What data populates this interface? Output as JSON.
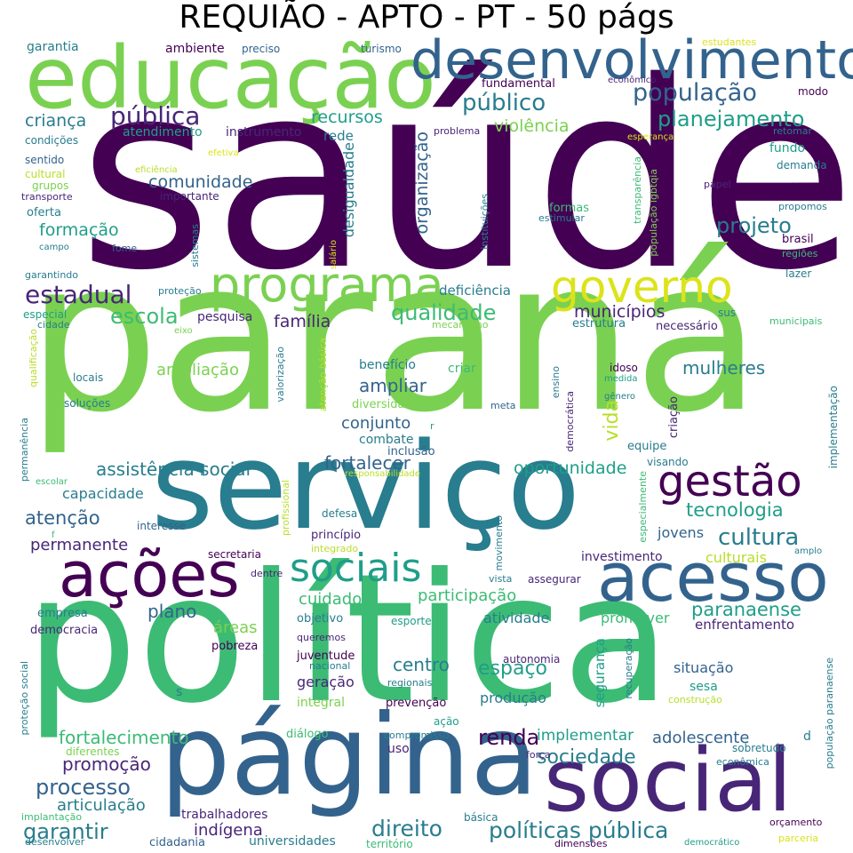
{
  "title": "REQUIÃO - APTO - PT - 50 págs",
  "colors": {
    "c1": "#440154",
    "c2": "#482677",
    "c3": "#33638d",
    "c4": "#287d8e",
    "c5": "#1f9e89",
    "c6": "#3cbb75",
    "c7": "#7ad151",
    "c8": "#b8de29",
    "c9": "#dce319"
  },
  "words": {
    "saude": "saúde",
    "parana": "paraná",
    "politica": "política",
    "servico": "serviço",
    "pagina": "página",
    "educacao": "educação",
    "desenvolvimento": "desenvolvimento",
    "social": "social",
    "acesso": "acesso",
    "acoes": "ações",
    "programa": "programa",
    "governo": "governo",
    "gestao": "gestão",
    "sociais": "sociais",
    "publica": "pública",
    "publico": "público",
    "populacao": "população",
    "planejamento": "planejamento",
    "crianca": "criança",
    "recursos": "recursos",
    "violencia": "violência",
    "comunidade": "comunidade",
    "projeto": "projeto",
    "estadual": "estadual",
    "qualidade": "qualidade",
    "escola": "escola",
    "formacao": "formação",
    "municipios": "municípios",
    "familia": "família",
    "cultura": "cultura",
    "paranaense": "paranaense",
    "tecnologia": "tecnologia",
    "fortalecer": "fortalecer",
    "assistencia_social": "assistência social",
    "oportunidade": "oportunidade",
    "atencao": "atenção",
    "permanente": "permanente",
    "renda": "renda",
    "processo": "processo",
    "garantir": "garantir",
    "direito": "direito",
    "politicas_publica": "políticas pública",
    "sociedade": "sociedade",
    "fortalecimento": "fortalecimento",
    "promocao": "promoção",
    "espaco": "espaço",
    "centro": "centro",
    "participacao": "participação",
    "cuidado": "cuidado",
    "plano": "plano",
    "ampliar": "ampliar",
    "ampliacao": "ampliação",
    "mulheres": "mulheres",
    "vida": "vida",
    "capacidade": "capacidade",
    "conjunto": "conjunto",
    "areas": "áreas",
    "articulacao": "articulação",
    "indigena": "indígena",
    "adolescente": "adolescente",
    "implementar": "implementar",
    "jovens": "jovens",
    "culturais": "culturais",
    "investimento": "investimento",
    "atividade": "atividade",
    "promover": "promover",
    "enfrentamento": "enfrentamento",
    "situacao": "situação",
    "geracao": "geração",
    "producao": "produção",
    "organizacao": "organização",
    "desigualdade": "desigualdade",
    "instrumento": "instrumento",
    "rede": "rede",
    "atendimento": "atendimento",
    "ambiente": "ambiente",
    "garantia": "garantia",
    "preciso": "preciso",
    "turismo": "turismo",
    "fundamental": "fundamental",
    "estudantes": "estudantes",
    "economico": "econômico",
    "modo": "modo",
    "retomar": "retomar",
    "esperanca": "esperança",
    "fundo": "fundo",
    "demanda": "demanda",
    "papel": "papel",
    "unidades": "unidades",
    "propomos": "propomos",
    "brasil": "brasil",
    "regioes": "regiões",
    "lazer": "lazer",
    "condicoes": "condições",
    "sentido": "sentido",
    "cultural": "cultural",
    "grupos": "grupos",
    "transporte": "transporte",
    "oferta": "oferta",
    "campo": "campo",
    "fome": "fome",
    "garantindo": "garantindo",
    "eficiencia": "eficiência",
    "efetiva": "efetiva",
    "importante": "importante",
    "problema": "problema",
    "formas": "formas",
    "estimular": "estimular",
    "populacao_lgbtqia": "população lgbtqia",
    "transparencia": "transparência",
    "instituicoes": "instituições",
    "sistemas": "sistemas",
    "salario": "salário",
    "protecao": "proteção",
    "deficiencia": "deficiência",
    "especial": "especial",
    "cidade": "cidade",
    "eixo": "eixo",
    "pesquisa": "pesquisa",
    "mecanismo": "mecanismo",
    "estrutura": "estrutura",
    "sus": "sus",
    "necessario": "necessário",
    "municipais": "municipais",
    "qualificacao": "qualificação",
    "locais": "locais",
    "solucoes": "soluções",
    "valorizacao": "valorização",
    "atencao_basica": "atenção básica",
    "diversidade": "diversidade",
    "beneficio": "benefício",
    "criar": "criar",
    "meta": "meta",
    "ensino": "ensino",
    "democratica": "democrática",
    "idoso": "idoso",
    "medida": "medida",
    "genero": "gênero",
    "criacao": "criação",
    "implementacao": "implementação",
    "equipe": "equipe",
    "visando": "visando",
    "combate": "combate",
    "inclusao": "inclusão",
    "responsabilidade": "responsabilidade",
    "r": "r",
    "permanencia": "permanência",
    "escolar": "escolar",
    "interesse": "interesse",
    "f": "f",
    "profissional": "profissional",
    "defesa": "defesa",
    "principio": "princípio",
    "integrado": "integrado",
    "movimento": "movimento",
    "especialmente": "especialmente",
    "secretaria": "secretaria",
    "dentre": "dentre",
    "amplo": "amplo",
    "vista": "vista",
    "assegurar": "assegurar",
    "empresa": "empresa",
    "democracia": "democracia",
    "objetivo": "objetivo",
    "esporte": "esporte",
    "pobreza": "pobreza",
    "queremos": "queremos",
    "juventude": "juventude",
    "nacional": "nacional",
    "autonomia": "autonomia",
    "regionais": "regionais",
    "s": "s",
    "integral": "integral",
    "prevencao": "prevenção",
    "seguranca": "segurança",
    "recuperacao": "recuperação",
    "sesa": "sesa",
    "construcao": "construção",
    "protecao_social": "proteção social",
    "dialogo": "diálogo",
    "acao": "ação",
    "diferentes": "diferentes",
    "compromisso": "compromisso",
    "d": "d",
    "sobretudo": "sobretudo",
    "populacao_paranaense": "população paranaense",
    "uso": "uso",
    "forca": "força",
    "economica": "econômica",
    "implantacao": "implantação",
    "trabalhadores": "trabalhadores",
    "basica": "básica",
    "orcamento": "orçamento",
    "desenvolver": "desenvolver",
    "cidadania": "cidadania",
    "universidades": "universidades",
    "territorio": "território",
    "dimensoes": "dimensões",
    "democratico": "democrático",
    "parceria": "parceria"
  }
}
